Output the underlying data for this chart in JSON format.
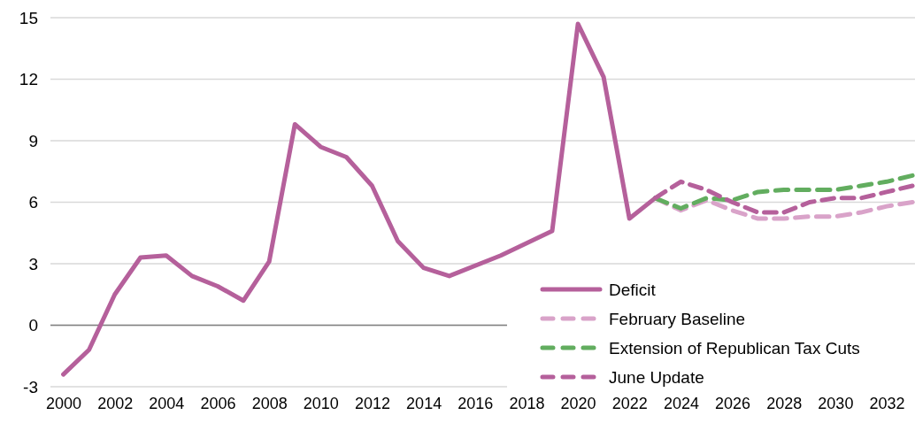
{
  "chart_data": {
    "type": "line",
    "x": [
      2000,
      2001,
      2002,
      2003,
      2004,
      2005,
      2006,
      2007,
      2008,
      2009,
      2010,
      2011,
      2012,
      2013,
      2014,
      2015,
      2017,
      2019,
      2020,
      2021,
      2022,
      2023
    ],
    "series": [
      {
        "name": "Deficit",
        "color": "#b5609b",
        "line_style": "solid",
        "values": [
          -2.4,
          -1.2,
          1.5,
          3.3,
          3.4,
          2.4,
          1.9,
          1.2,
          3.1,
          9.8,
          8.7,
          8.2,
          6.8,
          4.1,
          2.8,
          2.4,
          3.4,
          4.6,
          14.7,
          12.1,
          5.2,
          6.2
        ]
      },
      {
        "name": "February Baseline",
        "color": "#d9a3c9",
        "line_style": "dashed",
        "x": [
          2023,
          2024,
          2025,
          2026,
          2027,
          2028,
          2029,
          2030,
          2031,
          2032,
          2033
        ],
        "values": [
          6.2,
          5.6,
          6.1,
          5.6,
          5.2,
          5.2,
          5.3,
          5.3,
          5.5,
          5.8,
          6.0
        ]
      },
      {
        "name": "Extension of Republican Tax Cuts",
        "color": "#62ad5f",
        "line_style": "dashed",
        "x": [
          2023,
          2024,
          2025,
          2026,
          2027,
          2028,
          2029,
          2030,
          2031,
          2032,
          2033
        ],
        "values": [
          6.2,
          5.7,
          6.2,
          6.1,
          6.5,
          6.6,
          6.6,
          6.6,
          6.8,
          7.0,
          7.3
        ]
      },
      {
        "name": "June Update",
        "color": "#b5609b",
        "line_style": "dashed",
        "x": [
          2023,
          2024,
          2025,
          2026,
          2027,
          2028,
          2029,
          2030,
          2031,
          2032,
          2033
        ],
        "values": [
          6.2,
          7.0,
          6.6,
          6.0,
          5.5,
          5.5,
          6.0,
          6.2,
          6.2,
          6.5,
          6.8
        ]
      }
    ],
    "xlim": [
      1999.5,
      2033.1
    ],
    "xticks": [
      2000,
      2002,
      2004,
      2006,
      2008,
      2010,
      2012,
      2014,
      2016,
      2018,
      2020,
      2022,
      2024,
      2026,
      2028,
      2030,
      2032
    ],
    "ylim": [
      -3,
      15
    ],
    "yticks": [
      -3,
      0,
      3,
      6,
      9,
      12,
      15
    ],
    "ref_lines": [
      {
        "axis": "y",
        "value": 0,
        "color": "#808080"
      }
    ],
    "grid": "y",
    "legend": "bottom right",
    "marker": "none"
  }
}
